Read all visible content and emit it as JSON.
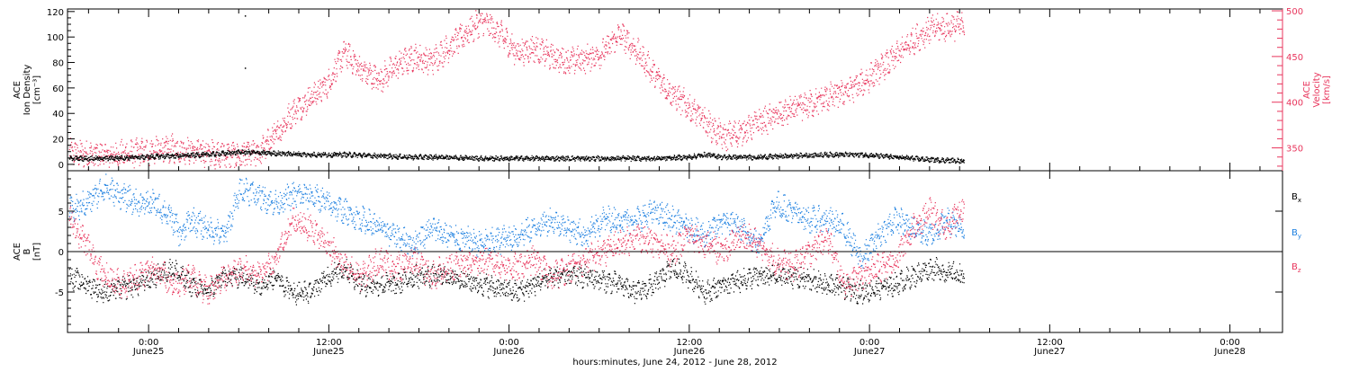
{
  "chart_data": [
    {
      "type": "scatter",
      "panel": "top",
      "left_ylabel": [
        "ACE",
        "Ion Density",
        "[cm⁻³]"
      ],
      "right_ylabel": [
        "ACE",
        "Velocity",
        "[km/s]"
      ],
      "left_yticks": [
        0,
        20,
        40,
        60,
        80,
        100,
        120
      ],
      "left_ylim": [
        -5,
        122
      ],
      "right_yticks": [
        350,
        400,
        450,
        500
      ],
      "right_ylim": [
        325,
        502
      ],
      "series": [
        {
          "axis": "left",
          "color": "#000000",
          "knots": [
            [
              0,
              5
            ],
            [
              4,
              6
            ],
            [
              8,
              7
            ],
            [
              12,
              8
            ],
            [
              16,
              10
            ],
            [
              20,
              9
            ],
            [
              24,
              8
            ],
            [
              28,
              8
            ],
            [
              32,
              7
            ],
            [
              36,
              6
            ],
            [
              40,
              6
            ],
            [
              44,
              5
            ],
            [
              48,
              5
            ],
            [
              52,
              5
            ],
            [
              56,
              5
            ],
            [
              60,
              5
            ],
            [
              64,
              5
            ],
            [
              68,
              6
            ],
            [
              70,
              8
            ],
            [
              72,
              6
            ],
            [
              76,
              6
            ],
            [
              80,
              7
            ],
            [
              84,
              8
            ],
            [
              88,
              8
            ],
            [
              92,
              6
            ],
            [
              96,
              4
            ],
            [
              100,
              3
            ]
          ],
          "outliers": [
            [
              6.4,
              117
            ],
            [
              6.4,
              76
            ]
          ]
        },
        {
          "axis: right": "",
          "axis": "right",
          "color": "#e8355c",
          "knots": [
            [
              -4,
              345
            ],
            [
              0,
              342
            ],
            [
              4,
              345
            ],
            [
              8,
              350
            ],
            [
              12,
              345
            ],
            [
              16,
              342
            ],
            [
              18,
              345
            ],
            [
              20,
              365
            ],
            [
              22,
              390
            ],
            [
              24,
              405
            ],
            [
              26,
              420
            ],
            [
              28,
              455
            ],
            [
              30,
              435
            ],
            [
              32,
              425
            ],
            [
              34,
              440
            ],
            [
              36,
              450
            ],
            [
              38,
              445
            ],
            [
              40,
              460
            ],
            [
              42,
              475
            ],
            [
              44,
              490
            ],
            [
              46,
              475
            ],
            [
              48,
              455
            ],
            [
              50,
              460
            ],
            [
              52,
              450
            ],
            [
              54,
              445
            ],
            [
              56,
              448
            ],
            [
              58,
              455
            ],
            [
              60,
              475
            ],
            [
              62,
              455
            ],
            [
              64,
              430
            ],
            [
              66,
              410
            ],
            [
              68,
              395
            ],
            [
              70,
              378
            ],
            [
              72,
              362
            ],
            [
              74,
              368
            ],
            [
              76,
              378
            ],
            [
              78,
              385
            ],
            [
              80,
              392
            ],
            [
              82,
              398
            ],
            [
              84,
              405
            ],
            [
              86,
              412
            ],
            [
              88,
              420
            ],
            [
              90,
              435
            ],
            [
              92,
              450
            ],
            [
              94,
              468
            ],
            [
              96,
              480
            ],
            [
              100,
              485
            ]
          ]
        }
      ]
    },
    {
      "type": "scatter",
      "panel": "bottom",
      "ylabel": [
        "ACE",
        "B",
        "[nT]"
      ],
      "yticks": [
        -5,
        0,
        5
      ],
      "ylim": [
        -10,
        10
      ],
      "legend_placement": "right",
      "series": [
        {
          "name": "Bx",
          "label_main": "B",
          "label_sub": "x",
          "color": "#000000",
          "knots": [
            [
              -4,
              -3
            ],
            [
              0,
              -5
            ],
            [
              4,
              -4
            ],
            [
              8,
              -2
            ],
            [
              10,
              -4
            ],
            [
              12,
              -5
            ],
            [
              14,
              -3
            ],
            [
              16,
              -3
            ],
            [
              18,
              -4
            ],
            [
              20,
              -3
            ],
            [
              22,
              -5
            ],
            [
              24,
              -5
            ],
            [
              26,
              -3
            ],
            [
              28,
              -2
            ],
            [
              30,
              -4
            ],
            [
              32,
              -4
            ],
            [
              34,
              -4
            ],
            [
              36,
              -3
            ],
            [
              40,
              -3
            ],
            [
              44,
              -4
            ],
            [
              48,
              -5
            ],
            [
              50,
              -4
            ],
            [
              52,
              -3
            ],
            [
              56,
              -3
            ],
            [
              60,
              -4
            ],
            [
              62,
              -5
            ],
            [
              64,
              -4
            ],
            [
              66,
              -2
            ],
            [
              68,
              -3
            ],
            [
              70,
              -5
            ],
            [
              72,
              -4
            ],
            [
              76,
              -3
            ],
            [
              80,
              -3
            ],
            [
              84,
              -4
            ],
            [
              88,
              -5
            ],
            [
              92,
              -4
            ],
            [
              96,
              -2
            ],
            [
              100,
              -3
            ]
          ]
        },
        {
          "name": "By",
          "label_main": "B",
          "label_sub": "y",
          "color": "#1b7fe0",
          "knots": [
            [
              -4,
              5
            ],
            [
              -2,
              6
            ],
            [
              0,
              8
            ],
            [
              2,
              7
            ],
            [
              4,
              6
            ],
            [
              6,
              6
            ],
            [
              8,
              4
            ],
            [
              9,
              2
            ],
            [
              10,
              4
            ],
            [
              12,
              3
            ],
            [
              14,
              2
            ],
            [
              16,
              8
            ],
            [
              18,
              7
            ],
            [
              20,
              6
            ],
            [
              22,
              7
            ],
            [
              24,
              7
            ],
            [
              26,
              6
            ],
            [
              28,
              5
            ],
            [
              30,
              4
            ],
            [
              32,
              3
            ],
            [
              34,
              2
            ],
            [
              36,
              1
            ],
            [
              38,
              3
            ],
            [
              40,
              2
            ],
            [
              44,
              1
            ],
            [
              48,
              2
            ],
            [
              50,
              3
            ],
            [
              52,
              4
            ],
            [
              54,
              3
            ],
            [
              56,
              2
            ],
            [
              58,
              4
            ],
            [
              60,
              4
            ],
            [
              62,
              4
            ],
            [
              64,
              5
            ],
            [
              66,
              4
            ],
            [
              68,
              3
            ],
            [
              70,
              2
            ],
            [
              72,
              4
            ],
            [
              74,
              3
            ],
            [
              76,
              1
            ],
            [
              78,
              6
            ],
            [
              80,
              5
            ],
            [
              82,
              4
            ],
            [
              84,
              4
            ],
            [
              86,
              3
            ],
            [
              88,
              -1
            ],
            [
              90,
              2
            ],
            [
              92,
              4
            ],
            [
              94,
              3
            ],
            [
              96,
              2
            ],
            [
              98,
              4
            ],
            [
              100,
              3
            ]
          ]
        },
        {
          "name": "Bz",
          "label_main": "B",
          "label_sub": "z",
          "color": "#e8355c",
          "knots": [
            [
              -4,
              4
            ],
            [
              -2,
              1
            ],
            [
              0,
              -3
            ],
            [
              2,
              -4
            ],
            [
              4,
              -3
            ],
            [
              6,
              -2
            ],
            [
              8,
              -4
            ],
            [
              10,
              -3
            ],
            [
              12,
              -5
            ],
            [
              14,
              -3
            ],
            [
              16,
              -2
            ],
            [
              18,
              -3
            ],
            [
              20,
              -1
            ],
            [
              22,
              4
            ],
            [
              24,
              3
            ],
            [
              26,
              1
            ],
            [
              28,
              -2
            ],
            [
              30,
              -3
            ],
            [
              32,
              -1
            ],
            [
              34,
              -2
            ],
            [
              36,
              -1
            ],
            [
              38,
              -3
            ],
            [
              40,
              -2
            ],
            [
              44,
              -1
            ],
            [
              48,
              -2
            ],
            [
              50,
              -1
            ],
            [
              52,
              -3
            ],
            [
              54,
              -2
            ],
            [
              56,
              -1
            ],
            [
              58,
              0
            ],
            [
              60,
              1
            ],
            [
              62,
              2
            ],
            [
              64,
              1
            ],
            [
              66,
              0
            ],
            [
              68,
              2
            ],
            [
              70,
              1
            ],
            [
              72,
              0
            ],
            [
              74,
              2
            ],
            [
              76,
              1
            ],
            [
              78,
              -1
            ],
            [
              80,
              -2
            ],
            [
              82,
              0
            ],
            [
              84,
              2
            ],
            [
              86,
              -4
            ],
            [
              88,
              -3
            ],
            [
              90,
              -2
            ],
            [
              92,
              -1
            ],
            [
              94,
              3
            ],
            [
              96,
              5
            ],
            [
              98,
              3
            ],
            [
              100,
              6
            ]
          ]
        }
      ]
    }
  ],
  "x_axis": {
    "ticks": [
      {
        "hours": 0,
        "time": "0:00",
        "date": "June25"
      },
      {
        "hours": 12,
        "time": "12:00",
        "date": "June25"
      },
      {
        "hours": 24,
        "time": "0:00",
        "date": "June26"
      },
      {
        "hours": 36,
        "time": "12:00",
        "date": "June26"
      },
      {
        "hours": 48,
        "time": "0:00",
        "date": "June27"
      },
      {
        "hours": 60,
        "time": "12:00",
        "date": "June27"
      },
      {
        "hours": 72,
        "time": "0:00",
        "date": "June28"
      }
    ],
    "xlim_hours": [
      -5.4,
      75.5
    ],
    "data_end_hours": 54.3,
    "title": "hours:minutes, June 24, 2012 - June 28, 2012"
  }
}
